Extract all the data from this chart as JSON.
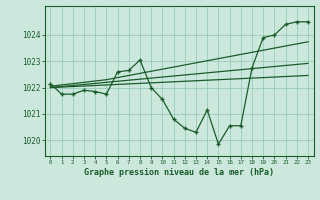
{
  "background_color": "#cce8dc",
  "grid_color": "#99ccbb",
  "line_color": "#1a5c2a",
  "title": "Graphe pression niveau de la mer (hPa)",
  "x_labels": [
    "0",
    "1",
    "2",
    "3",
    "4",
    "5",
    "6",
    "7",
    "8",
    "9",
    "10",
    "11",
    "12",
    "13",
    "14",
    "15",
    "16",
    "17",
    "18",
    "19",
    "20",
    "21",
    "22",
    "23"
  ],
  "ylim": [
    1019.4,
    1025.1
  ],
  "yticks": [
    1020,
    1021,
    1022,
    1023,
    1024
  ],
  "series": {
    "main": [
      1022.15,
      1021.75,
      1021.75,
      1021.9,
      1021.85,
      1021.75,
      1022.6,
      1022.65,
      1023.05,
      1022.0,
      1021.55,
      1020.8,
      1020.45,
      1020.3,
      1021.15,
      1019.85,
      1020.55,
      1020.55,
      1022.75,
      1023.9,
      1024.0,
      1024.4,
      1024.5,
      1024.5
    ],
    "trend1": [
      1022.0,
      1022.02,
      1022.04,
      1022.06,
      1022.08,
      1022.1,
      1022.12,
      1022.14,
      1022.16,
      1022.18,
      1022.2,
      1022.22,
      1022.24,
      1022.26,
      1022.28,
      1022.3,
      1022.32,
      1022.34,
      1022.36,
      1022.38,
      1022.4,
      1022.42,
      1022.44,
      1022.46
    ],
    "trend2": [
      1022.0,
      1022.04,
      1022.08,
      1022.12,
      1022.16,
      1022.2,
      1022.24,
      1022.28,
      1022.32,
      1022.36,
      1022.4,
      1022.44,
      1022.48,
      1022.52,
      1022.56,
      1022.6,
      1022.64,
      1022.68,
      1022.72,
      1022.76,
      1022.8,
      1022.84,
      1022.88,
      1022.92
    ],
    "trend3": [
      1022.05,
      1022.1,
      1022.15,
      1022.2,
      1022.25,
      1022.3,
      1022.38,
      1022.46,
      1022.54,
      1022.62,
      1022.7,
      1022.78,
      1022.86,
      1022.94,
      1023.02,
      1023.1,
      1023.18,
      1023.26,
      1023.34,
      1023.42,
      1023.5,
      1023.58,
      1023.66,
      1023.74
    ]
  }
}
